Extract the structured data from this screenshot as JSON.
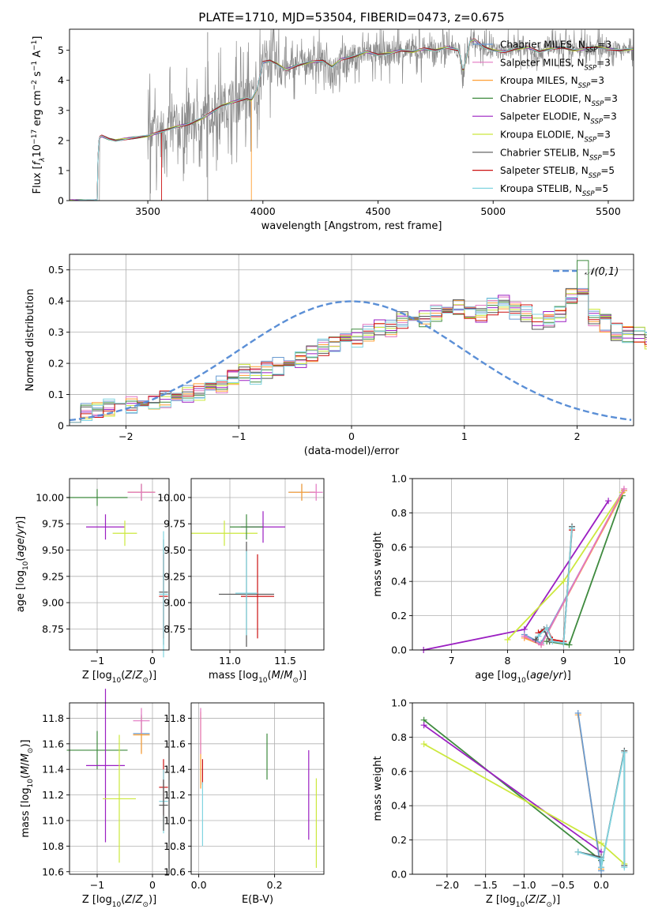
{
  "colors": {
    "Chabrier MILES": "#6a9bd1",
    "Salpeter MILES": "#e377c2",
    "Kroupa MILES": "#ff9f33",
    "Chabrier ELODIE": "#3e8a3e",
    "Salpeter ELODIE": "#9b1fc2",
    "Kroupa ELODIE": "#cce83d",
    "Chabrier STELIB": "#555555",
    "Salpeter STELIB": "#cc1010",
    "Kroupa STELIB": "#80d4e0"
  },
  "chart_data": [
    {
      "id": "spectrum",
      "type": "line",
      "title": "PLATE=1710, MJD=53504, FIBERID=0473, z=0.675",
      "xlabel": "wavelength [Angstrom, rest frame]",
      "ylabel": "Flux [f_λ 10^-17 erg cm^-2 s^-1 A^-1]",
      "xlim": [
        3160,
        5610
      ],
      "ylim": [
        0,
        5.7
      ],
      "xticks": [
        3500,
        4000,
        4500,
        5000,
        5500
      ],
      "yticks": [
        0,
        1,
        2,
        3,
        4,
        5
      ],
      "grid": false,
      "legend": "right",
      "model_flux": {
        "x": [
          3160,
          3280,
          3285,
          3290,
          3300,
          3330,
          3360,
          3400,
          3450,
          3500,
          3560,
          3620,
          3680,
          3740,
          3780,
          3820,
          3880,
          3930,
          3950,
          3975,
          4000,
          4030,
          4060,
          4100,
          4150,
          4200,
          4260,
          4300,
          4340,
          4400,
          4450,
          4500,
          4550,
          4600,
          4650,
          4700,
          4750,
          4800,
          4850,
          4870,
          4900,
          4920,
          4960,
          5000,
          5050,
          5100,
          5150,
          5200,
          5250,
          5300,
          5350,
          5400,
          5450,
          5500,
          5550,
          5610
        ],
        "values": [
          0,
          0,
          1.8,
          2.1,
          2.15,
          2.05,
          2.0,
          2.05,
          2.1,
          2.15,
          2.3,
          2.45,
          2.55,
          2.75,
          2.95,
          3.15,
          3.3,
          3.4,
          3.35,
          3.7,
          4.6,
          4.65,
          4.55,
          4.35,
          4.5,
          4.6,
          4.65,
          4.45,
          4.7,
          4.8,
          4.95,
          4.85,
          4.9,
          5.0,
          4.95,
          5.05,
          5.0,
          5.1,
          5.0,
          4.3,
          5.3,
          5.35,
          5.1,
          5.0,
          4.95,
          5.05,
          5.1,
          4.95,
          5.05,
          5.1,
          5.0,
          5.05,
          5.1,
          5.05,
          5.0,
          5.05
        ]
      },
      "legend_entries": [
        {
          "label": "Chabrier MILES, N",
          "sub": "SSP",
          "tail": "=3"
        },
        {
          "label": "Salpeter MILES, N",
          "sub": "SSP",
          "tail": "=3"
        },
        {
          "label": "Kroupa MILES, N",
          "sub": "SSP",
          "tail": "=3"
        },
        {
          "label": "Chabrier ELODIE, N",
          "sub": "SSP",
          "tail": "=3"
        },
        {
          "label": "Salpeter ELODIE, N",
          "sub": "SSP",
          "tail": "=3"
        },
        {
          "label": "Kroupa ELODIE, N",
          "sub": "SSP",
          "tail": "=3"
        },
        {
          "label": "Chabrier STELIB, N",
          "sub": "SSP",
          "tail": "=5"
        },
        {
          "label": "Salpeter STELIB, N",
          "sub": "SSP",
          "tail": "=5"
        },
        {
          "label": "Kroupa STELIB, N",
          "sub": "SSP",
          "tail": "=5"
        }
      ]
    },
    {
      "id": "residuals",
      "type": "histogram",
      "xlabel": "(data-model)/error",
      "ylabel": "Normed distribution",
      "xlim": [
        -2.5,
        2.5
      ],
      "ylim": [
        0,
        0.55
      ],
      "xticks": [
        -2,
        -1,
        0,
        1,
        2
      ],
      "yticks": [
        0.0,
        0.1,
        0.2,
        0.3,
        0.4,
        0.5
      ],
      "grid": true,
      "legend": "top-right",
      "reference_curve": "𝒩(0,1)",
      "bin_width": 0.1,
      "bin_start": -2.5,
      "base_heights": [
        0.04,
        0.045,
        0.05,
        0.06,
        0.06,
        0.065,
        0.07,
        0.08,
        0.085,
        0.1,
        0.1,
        0.11,
        0.12,
        0.135,
        0.15,
        0.17,
        0.16,
        0.18,
        0.19,
        0.2,
        0.21,
        0.23,
        0.25,
        0.26,
        0.27,
        0.28,
        0.3,
        0.32,
        0.31,
        0.34,
        0.35,
        0.34,
        0.36,
        0.37,
        0.38,
        0.37,
        0.36,
        0.38,
        0.39,
        0.37,
        0.36,
        0.33,
        0.34,
        0.36,
        0.41,
        0.44,
        0.35,
        0.33,
        0.3,
        0.29,
        0.29,
        0.27,
        0.3,
        0.25,
        0.24,
        0.22,
        0.2,
        0.19,
        0.18,
        0.16,
        0.15,
        0.14,
        0.13,
        0.12,
        0.11,
        0.1,
        0.1,
        0.09,
        0.085,
        0.08,
        0.075,
        0.07,
        0.07,
        0.06,
        0.06,
        0.055,
        0.05,
        0.05,
        0.045,
        0.045
      ]
    },
    {
      "id": "age-vs-Z",
      "type": "errorbar",
      "xlabel": "Z [log10(Z/Z☉)]",
      "ylabel": "age [log10(age/yr)]",
      "xlim": [
        -1.5,
        0.3
      ],
      "ylim": [
        8.55,
        10.18
      ],
      "xticks": [
        -1,
        0
      ],
      "yticks": [
        8.75,
        9.0,
        9.25,
        9.5,
        9.75,
        10.0
      ],
      "grid": true,
      "points": [
        {
          "series": "Chabrier ELODIE",
          "x": -1.0,
          "y": 10.0,
          "xerr": 0.55,
          "yerr": 0.08
        },
        {
          "series": "Salpeter ELODIE",
          "x": -0.85,
          "y": 9.72,
          "xerr": 0.35,
          "yerr": 0.12
        },
        {
          "series": "Kroupa ELODIE",
          "x": -0.5,
          "y": 9.66,
          "xerr": 0.22,
          "yerr": 0.12
        },
        {
          "series": "Chabrier MILES",
          "x": -0.2,
          "y": 10.05,
          "xerr": 0.25,
          "yerr": 0.08
        },
        {
          "series": "Kroupa MILES",
          "x": -0.2,
          "y": 10.05,
          "xerr": 0.25,
          "yerr": 0.08
        },
        {
          "series": "Salpeter MILES",
          "x": -0.2,
          "y": 10.05,
          "xerr": 0.25,
          "yerr": 0.08
        },
        {
          "series": "Chabrier STELIB",
          "x": 0.2,
          "y": 9.1,
          "xerr": 0.08,
          "yerr": 0.5
        },
        {
          "series": "Salpeter STELIB",
          "x": 0.2,
          "y": 9.06,
          "xerr": 0.08,
          "yerr": 0.4
        },
        {
          "series": "Kroupa STELIB",
          "x": 0.2,
          "y": 9.08,
          "xerr": 0.08,
          "yerr": 0.6
        }
      ]
    },
    {
      "id": "age-vs-mass",
      "type": "errorbar",
      "xlabel": "mass [log10(M/M☉)]",
      "ylabel": "",
      "xlim": [
        10.65,
        11.85
      ],
      "ylim": [
        8.55,
        10.18
      ],
      "xticks": [
        11.0,
        11.5
      ],
      "yticks": [
        8.75,
        9.0,
        9.25,
        9.5,
        9.75,
        10.0
      ],
      "grid": true,
      "points": [
        {
          "series": "Kroupa ELODIE",
          "x": 10.95,
          "y": 9.66,
          "xerr": 0.3,
          "yerr": 0.12
        },
        {
          "series": "Salpeter ELODIE",
          "x": 11.3,
          "y": 9.72,
          "xerr": 0.2,
          "yerr": 0.15
        },
        {
          "series": "Chabrier ELODIE",
          "x": 11.15,
          "y": 9.72,
          "xerr": 0.15,
          "yerr": 0.12
        },
        {
          "series": "Chabrier STELIB",
          "x": 11.15,
          "y": 9.08,
          "xerr": 0.25,
          "yerr": 0.5
        },
        {
          "series": "Salpeter STELIB",
          "x": 11.25,
          "y": 9.06,
          "xerr": 0.15,
          "yerr": 0.4
        },
        {
          "series": "Kroupa STELIB",
          "x": 11.15,
          "y": 9.09,
          "xerr": 0.1,
          "yerr": 0.4
        },
        {
          "series": "Chabrier MILES",
          "x": 11.65,
          "y": 10.05,
          "xerr": 0.12,
          "yerr": 0.08
        },
        {
          "series": "Kroupa MILES",
          "x": 11.65,
          "y": 10.05,
          "xerr": 0.12,
          "yerr": 0.08
        },
        {
          "series": "Salpeter MILES",
          "x": 11.78,
          "y": 10.05,
          "xerr": 0.06,
          "yerr": 0.08
        }
      ]
    },
    {
      "id": "massweight-vs-age",
      "type": "line",
      "xlabel": "age [log10(age/yr)]",
      "ylabel": "mass weight",
      "xlim": [
        6.3,
        10.25
      ],
      "ylim": [
        0,
        1.0
      ],
      "xticks": [
        7,
        8,
        9,
        10
      ],
      "yticks": [
        0.0,
        0.2,
        0.4,
        0.6,
        0.8,
        1.0
      ],
      "grid": true,
      "series": [
        {
          "name": "Salpeter ELODIE",
          "x": [
            6.5,
            8.3,
            9.8
          ],
          "y": [
            0.0,
            0.12,
            0.87
          ]
        },
        {
          "name": "Kroupa ELODIE",
          "x": [
            8.0,
            9.0,
            10.05
          ],
          "y": [
            0.06,
            0.4,
            0.92
          ]
        },
        {
          "name": "Chabrier ELODIE",
          "x": [
            8.7,
            9.1,
            10.05
          ],
          "y": [
            0.05,
            0.03,
            0.9
          ]
        },
        {
          "name": "Chabrier MILES",
          "x": [
            8.3,
            8.6,
            10.08
          ],
          "y": [
            0.09,
            0.04,
            0.93
          ]
        },
        {
          "name": "Kroupa MILES",
          "x": [
            8.3,
            8.6,
            10.08
          ],
          "y": [
            0.07,
            0.03,
            0.93
          ]
        },
        {
          "name": "Salpeter MILES",
          "x": [
            8.3,
            8.6,
            10.08
          ],
          "y": [
            0.08,
            0.03,
            0.94
          ]
        },
        {
          "name": "Chabrier STELIB",
          "x": [
            8.5,
            8.65,
            8.75,
            9.0,
            9.15
          ],
          "y": [
            0.06,
            0.12,
            0.05,
            0.04,
            0.72
          ]
        },
        {
          "name": "Salpeter STELIB",
          "x": [
            8.55,
            8.7,
            8.8,
            9.0,
            9.15
          ],
          "y": [
            0.1,
            0.13,
            0.06,
            0.05,
            0.7
          ]
        },
        {
          "name": "Kroupa STELIB",
          "x": [
            8.55,
            8.7,
            8.8,
            9.0,
            9.15
          ],
          "y": [
            0.08,
            0.13,
            0.05,
            0.04,
            0.71
          ]
        }
      ]
    },
    {
      "id": "mass-vs-Z",
      "type": "errorbar",
      "xlabel": "Z [log10(Z/Z☉)]",
      "ylabel": "mass [log10(M/M☉)]",
      "xlim": [
        -1.5,
        0.3
      ],
      "ylim": [
        10.58,
        11.92
      ],
      "xticks": [
        -1,
        0
      ],
      "yticks": [
        10.6,
        10.8,
        11.0,
        11.2,
        11.4,
        11.6,
        11.8
      ],
      "grid": true,
      "points": [
        {
          "series": "Chabrier ELODIE",
          "x": -1.0,
          "y": 11.55,
          "xerr": 0.55,
          "yerr": 0.15
        },
        {
          "series": "Salpeter ELODIE",
          "x": -0.85,
          "y": 11.43,
          "xerr": 0.35,
          "yerr": 0.6
        },
        {
          "series": "Kroupa ELODIE",
          "x": -0.6,
          "y": 11.17,
          "xerr": 0.3,
          "yerr": 0.5
        },
        {
          "series": "Chabrier MILES",
          "x": -0.2,
          "y": 11.68,
          "xerr": 0.15,
          "yerr": 0.15
        },
        {
          "series": "Kroupa MILES",
          "x": -0.2,
          "y": 11.67,
          "xerr": 0.15,
          "yerr": 0.15
        },
        {
          "series": "Salpeter MILES",
          "x": -0.2,
          "y": 11.78,
          "xerr": 0.15,
          "yerr": 0.1
        },
        {
          "series": "Salpeter STELIB",
          "x": 0.2,
          "y": 11.26,
          "xerr": 0.08,
          "yerr": 0.22
        },
        {
          "series": "Kroupa STELIB",
          "x": 0.2,
          "y": 11.15,
          "xerr": 0.08,
          "yerr": 0.25
        },
        {
          "series": "Chabrier STELIB",
          "x": 0.2,
          "y": 11.12,
          "xerr": 0.08,
          "yerr": 0.2
        }
      ]
    },
    {
      "id": "mass-vs-EBV",
      "type": "errorbar",
      "xlabel": "E(B-V)",
      "ylabel": "",
      "xlim": [
        -0.02,
        0.33
      ],
      "ylim": [
        10.58,
        11.92
      ],
      "xticks": [
        0.0,
        0.2
      ],
      "yticks": [
        10.6,
        10.8,
        11.0,
        11.2,
        11.4,
        11.6,
        11.8
      ],
      "grid": true,
      "points": [
        {
          "series": "Kroupa MILES",
          "x": 0.005,
          "y": 11.55,
          "xerr": 0,
          "yerr": 0.3
        },
        {
          "series": "Salpeter MILES",
          "x": 0.005,
          "y": 11.7,
          "xerr": 0,
          "yerr": 0.18
        },
        {
          "series": "Salpeter STELIB",
          "x": 0.01,
          "y": 11.38,
          "xerr": 0,
          "yerr": 0.1
        },
        {
          "series": "Kroupa STELIB",
          "x": 0.01,
          "y": 11.05,
          "xerr": 0,
          "yerr": 0.25
        },
        {
          "series": "Chabrier ELODIE",
          "x": 0.18,
          "y": 11.5,
          "xerr": 0,
          "yerr": 0.18
        },
        {
          "series": "Salpeter ELODIE",
          "x": 0.29,
          "y": 11.2,
          "xerr": 0,
          "yerr": 0.35
        },
        {
          "series": "Kroupa ELODIE",
          "x": 0.31,
          "y": 10.98,
          "xerr": 0,
          "yerr": 0.35
        }
      ]
    },
    {
      "id": "massweight-vs-Z",
      "type": "line",
      "xlabel": "Z [log10(Z/Z☉)]",
      "ylabel": "mass weight",
      "xlim": [
        -2.45,
        0.42
      ],
      "ylim": [
        0,
        1.0
      ],
      "xticks": [
        -2.0,
        -1.5,
        -1.0,
        -0.5,
        0.0
      ],
      "yticks": [
        0.0,
        0.2,
        0.4,
        0.6,
        0.8,
        1.0
      ],
      "grid": true,
      "series": [
        {
          "name": "Chabrier ELODIE",
          "x": [
            -2.3,
            0.0
          ],
          "y": [
            0.9,
            0.08
          ]
        },
        {
          "name": "Salpeter ELODIE",
          "x": [
            -2.3,
            0.0
          ],
          "y": [
            0.87,
            0.13
          ]
        },
        {
          "name": "Kroupa ELODIE",
          "x": [
            -2.3,
            0.0,
            0.3
          ],
          "y": [
            0.76,
            0.18,
            0.06
          ]
        },
        {
          "name": "Kroupa MILES",
          "x": [
            -0.3,
            0.0
          ],
          "y": [
            0.93,
            0.03
          ]
        },
        {
          "name": "Chabrier MILES",
          "x": [
            -0.3,
            0.0
          ],
          "y": [
            0.94,
            0.02
          ]
        },
        {
          "name": "Chabrier STELIB",
          "x": [
            -0.3,
            0.0,
            0.0,
            0.3,
            0.3
          ],
          "y": [
            0.13,
            0.1,
            0.04,
            0.72,
            0.05
          ]
        },
        {
          "name": "Kroupa STELIB",
          "x": [
            -0.3,
            0.0,
            0.0,
            0.3,
            0.3
          ],
          "y": [
            0.13,
            0.09,
            0.04,
            0.71,
            0.04
          ]
        }
      ]
    }
  ]
}
